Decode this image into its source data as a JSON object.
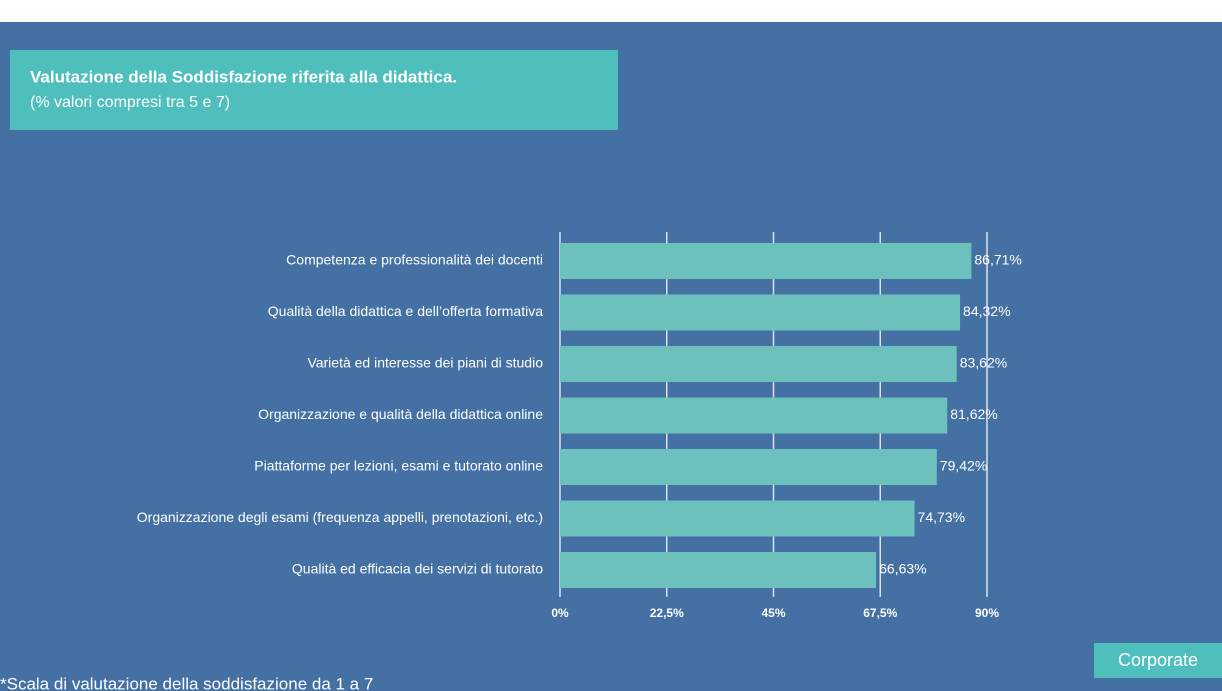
{
  "chart_data": {
    "type": "barh",
    "title": "Valutazione della Soddisfazione riferita alla didattica.",
    "subtitle": "(% valori compresi tra 5 e 7)",
    "categories": [
      "Competenza e professionalità dei docenti",
      "Qualità della didattica e dell’offerta formativa",
      "Varietà ed interesse dei piani di studio",
      "Organizzazione e qualità della didattica online",
      "Piattaforme per lezioni, esami e tutorato online",
      "Organizzazione degli esami (frequenza appelli, prenotazioni, etc.)",
      "Qualità ed efficacia dei servizi di tutorato"
    ],
    "values": [
      86.71,
      84.32,
      83.62,
      81.62,
      79.42,
      74.73,
      66.63
    ],
    "value_labels": [
      "86,71%",
      "84,32%",
      "83,62%",
      "81,62%",
      "79,42%",
      "74,73%",
      "66,63%"
    ],
    "color": "#6cc1bd",
    "xlim": [
      0,
      90
    ],
    "xticks": [
      {
        "value": 0,
        "label": "0%"
      },
      {
        "value": 22.5,
        "label": "22,5%"
      },
      {
        "value": 45,
        "label": "45%"
      },
      {
        "value": 67.5,
        "label": "67,5%"
      },
      {
        "value": 90,
        "label": "90%"
      }
    ],
    "grid": true
  },
  "footnote": "*Scala di valutazione della soddisfazione da 1 a 7",
  "button": "Corporate"
}
